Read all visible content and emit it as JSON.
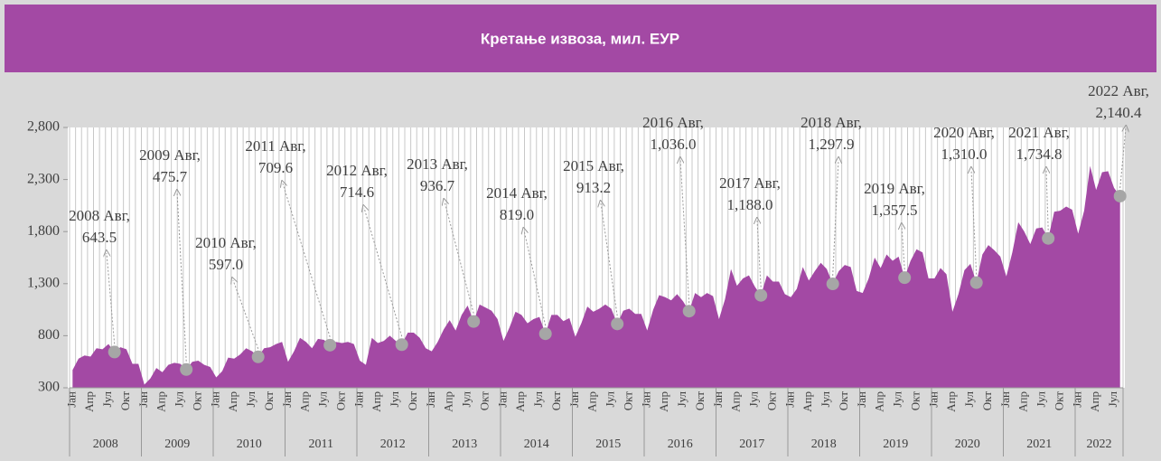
{
  "chart_data": {
    "type": "area",
    "title": "Кретање извоза, мил. ЕУР",
    "categories": [
      "Јан",
      null,
      null,
      "Апр",
      null,
      null,
      "Јул",
      null,
      null,
      "Окт",
      null,
      null,
      "Јан",
      null,
      null,
      "Апр",
      null,
      null,
      "Јул",
      null,
      null,
      "Окт",
      null,
      null,
      "Јан",
      null,
      null,
      "Апр",
      null,
      null,
      "Јул",
      null,
      null,
      "Окт",
      null,
      null,
      "Јан",
      null,
      null,
      "Апр",
      null,
      null,
      "Јул",
      null,
      null,
      "Окт",
      null,
      null,
      "Јан",
      null,
      null,
      "Апр",
      null,
      null,
      "Јул",
      null,
      null,
      "Окт",
      null,
      null,
      "Јан",
      null,
      null,
      "Апр",
      null,
      null,
      "Јул",
      null,
      null,
      "Окт",
      null,
      null,
      "Јан",
      null,
      null,
      "Апр",
      null,
      null,
      "Јул",
      null,
      null,
      "Окт",
      null,
      null,
      "Јан",
      null,
      null,
      "Апр",
      null,
      null,
      "Јул",
      null,
      null,
      "Окт",
      null,
      null,
      "Јан",
      null,
      null,
      "Апр",
      null,
      null,
      "Јул",
      null,
      null,
      "Окт",
      null,
      null,
      "Јан",
      null,
      null,
      "Апр",
      null,
      null,
      "Јул",
      null,
      null,
      "Окт",
      null,
      null,
      "Јан",
      null,
      null,
      "Апр",
      null,
      null,
      "Јул",
      null,
      null,
      "Окт",
      null,
      null,
      "Јан",
      null,
      null,
      "Апр",
      null,
      null,
      "Јул",
      null,
      null,
      "Окт",
      null,
      null,
      "Јан",
      null,
      null,
      "Апр",
      null,
      null,
      "Јул",
      null,
      null,
      "Окт",
      null,
      null,
      "Јан",
      null,
      null,
      "Апр",
      null,
      null,
      "Јул",
      null,
      null,
      "Окт",
      null,
      null,
      "Јан",
      null,
      null,
      "Апр",
      null,
      null,
      "Јул",
      null
    ],
    "years": [
      "2008",
      "2009",
      "2010",
      "2011",
      "2012",
      "2013",
      "2014",
      "2015",
      "2016",
      "2017",
      "2018",
      "2019",
      "2020",
      "2021",
      "2022"
    ],
    "values": [
      470,
      580,
      610,
      600,
      680,
      670,
      720,
      643.5,
      690,
      670,
      530,
      530,
      330,
      390,
      490,
      450,
      520,
      540,
      530,
      475.7,
      550,
      560,
      520,
      500,
      400,
      460,
      590,
      580,
      620,
      680,
      650,
      597.0,
      680,
      690,
      720,
      740,
      550,
      650,
      780,
      740,
      680,
      770,
      760,
      709.6,
      740,
      730,
      740,
      720,
      560,
      520,
      780,
      730,
      750,
      800,
      750,
      714.6,
      830,
      830,
      780,
      680,
      650,
      740,
      860,
      950,
      850,
      1000,
      1090,
      936.7,
      1100,
      1070,
      1040,
      960,
      750,
      880,
      1030,
      1000,
      920,
      960,
      980,
      819.0,
      1000,
      1000,
      940,
      970,
      790,
      920,
      1080,
      1030,
      1060,
      1100,
      1060,
      913.2,
      1040,
      1060,
      1010,
      1010,
      850,
      1050,
      1190,
      1170,
      1140,
      1200,
      1130,
      1036.0,
      1210,
      1170,
      1210,
      1180,
      960,
      1150,
      1440,
      1280,
      1350,
      1380,
      1270,
      1188.0,
      1380,
      1320,
      1320,
      1200,
      1170,
      1250,
      1460,
      1330,
      1420,
      1500,
      1440,
      1297.9,
      1420,
      1480,
      1460,
      1230,
      1210,
      1350,
      1550,
      1450,
      1580,
      1520,
      1560,
      1357.5,
      1520,
      1630,
      1600,
      1350,
      1350,
      1450,
      1390,
      1030,
      1200,
      1430,
      1490,
      1310.0,
      1580,
      1670,
      1620,
      1560,
      1370,
      1600,
      1890,
      1800,
      1680,
      1830,
      1840,
      1734.8,
      1990,
      2000,
      2040,
      2010,
      1780,
      2000,
      2430,
      2200,
      2370,
      2380,
      2220,
      2140.4
    ],
    "value_labels": [
      null,
      null,
      null,
      null,
      null,
      null,
      null,
      "643.5",
      null,
      null,
      null,
      null,
      null,
      null,
      null,
      null,
      null,
      null,
      null,
      "475.7",
      null,
      null,
      null,
      null,
      null,
      null,
      null,
      null,
      null,
      null,
      null,
      "597.0",
      null,
      null,
      null,
      null,
      null,
      null,
      null,
      null,
      null,
      null,
      null,
      "709.6",
      null,
      null,
      null,
      null,
      null,
      null,
      null,
      null,
      null,
      null,
      null,
      "714.6",
      null,
      null,
      null,
      null,
      null,
      null,
      null,
      null,
      null,
      null,
      null,
      "936.7",
      null,
      null,
      null,
      null,
      null,
      null,
      null,
      null,
      null,
      null,
      null,
      "819.0",
      null,
      null,
      null,
      null,
      null,
      null,
      null,
      null,
      null,
      null,
      null,
      "913.2",
      null,
      null,
      null,
      null,
      null,
      null,
      null,
      null,
      null,
      null,
      null,
      "1,036.0",
      null,
      null,
      null,
      null,
      null,
      null,
      null,
      null,
      null,
      null,
      null,
      "1,188.0",
      null,
      null,
      null,
      null,
      null,
      null,
      null,
      null,
      null,
      null,
      null,
      "1,297.9",
      null,
      null,
      null,
      null,
      null,
      null,
      null,
      null,
      null,
      null,
      null,
      "1,357.5",
      null,
      null,
      null,
      null,
      null,
      null,
      null,
      null,
      null,
      null,
      null,
      "1,310.0",
      null,
      null,
      null,
      null,
      null,
      null,
      null,
      null,
      null,
      null,
      null,
      "1,734.8",
      null,
      null,
      null,
      null,
      null,
      null,
      null,
      null,
      null,
      null,
      null,
      "2,140.4"
    ],
    "annotations": [
      "2008 Авг,",
      "2009 Авг,",
      "2010 Авг,",
      "2011 Авг,",
      "2012 Авг,",
      "2013 Авг,",
      "2014 Авг,",
      "2015 Авг,",
      "2016 Авг,",
      "2017 Авг,",
      "2018 Авг,",
      "2019 Авг,",
      "2020 Авг,",
      "2021 Авг,",
      "2022 Авг,"
    ],
    "color": "#a349a4",
    "marker_color": "#a6a6a6",
    "ylim": [
      300,
      2800
    ],
    "yticks": [
      300,
      800,
      {
        "value": 1300,
        "label": "1,300"
      },
      {
        "value": 1800,
        "label": "1,800"
      },
      {
        "value": 2300,
        "label": "2,300"
      },
      {
        "value": 2800,
        "label": "2,800"
      }
    ]
  }
}
